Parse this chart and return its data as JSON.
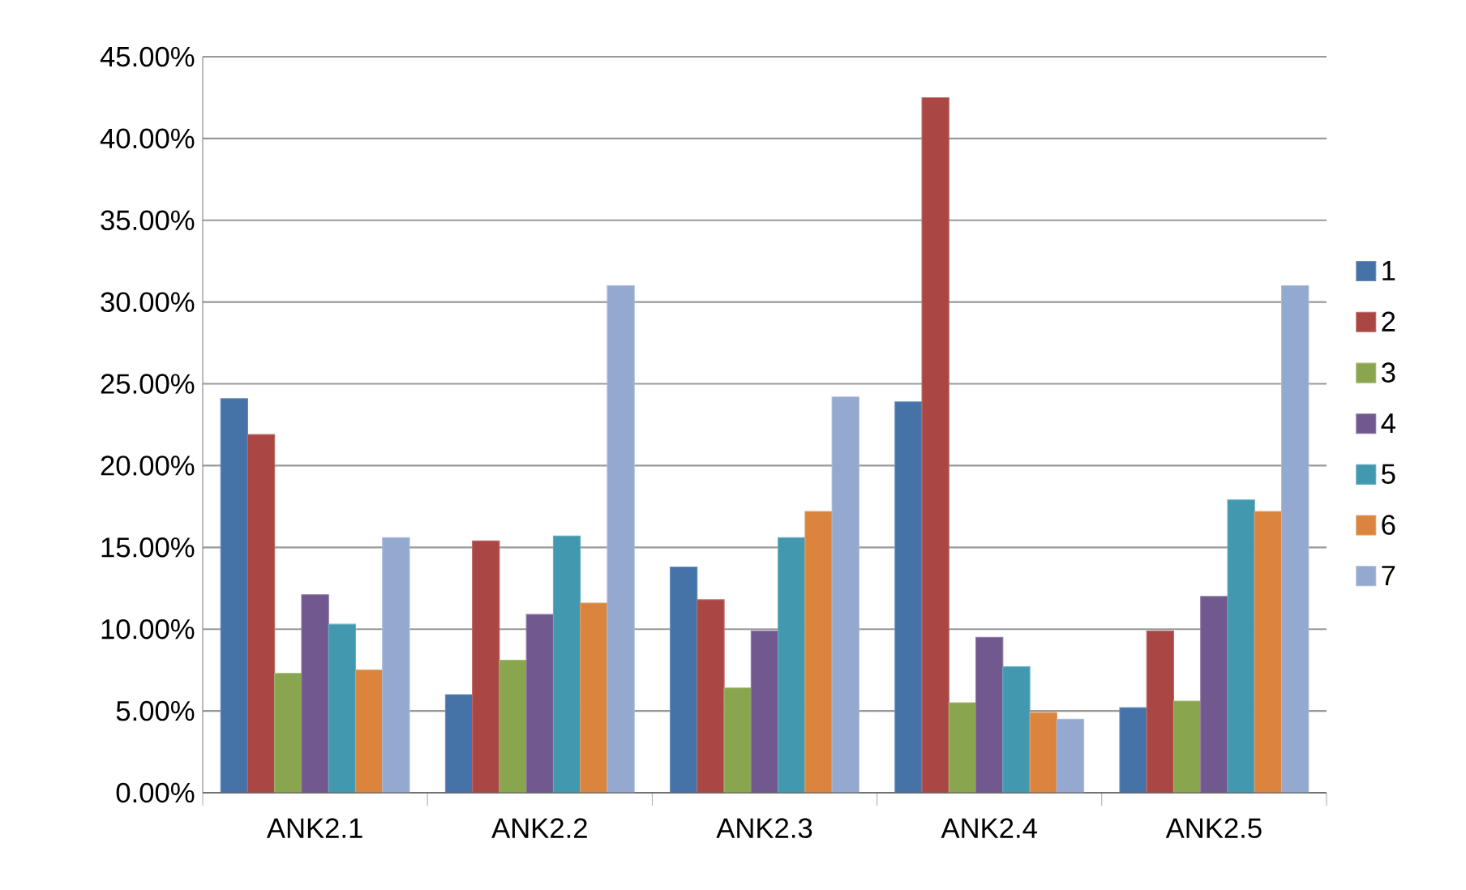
{
  "chart_data": {
    "type": "bar",
    "categories": [
      "ANK2.1",
      "ANK2.2",
      "ANK2.3",
      "ANK2.4",
      "ANK2.5"
    ],
    "series": [
      {
        "name": "1",
        "color": "#4572a7",
        "values": [
          24.1,
          6.0,
          13.8,
          23.9,
          5.2
        ]
      },
      {
        "name": "2",
        "color": "#aa4643",
        "values": [
          21.9,
          15.4,
          11.8,
          42.5,
          9.9
        ]
      },
      {
        "name": "3",
        "color": "#89a54e",
        "values": [
          7.3,
          8.1,
          6.4,
          5.5,
          5.6
        ]
      },
      {
        "name": "4",
        "color": "#71588f",
        "values": [
          12.1,
          10.9,
          9.9,
          9.5,
          12.0
        ]
      },
      {
        "name": "5",
        "color": "#4198af",
        "values": [
          10.3,
          15.7,
          15.6,
          7.7,
          17.9
        ]
      },
      {
        "name": "6",
        "color": "#db843d",
        "values": [
          7.5,
          11.6,
          17.2,
          4.9,
          17.2
        ]
      },
      {
        "name": "7",
        "color": "#93a9cf",
        "values": [
          15.6,
          31.0,
          24.2,
          4.5,
          31.0
        ]
      }
    ],
    "ylim": [
      0,
      45
    ],
    "yticks": [
      {
        "value": 0,
        "label": "0.00%"
      },
      {
        "value": 5,
        "label": "5.00%"
      },
      {
        "value": 10,
        "label": "10.00%"
      },
      {
        "value": 15,
        "label": "15.00%"
      },
      {
        "value": 20,
        "label": "20.00%"
      },
      {
        "value": 25,
        "label": "25.00%"
      },
      {
        "value": 30,
        "label": "30.00%"
      },
      {
        "value": 35,
        "label": "35.00%"
      },
      {
        "value": 40,
        "label": "40.00%"
      },
      {
        "value": 45,
        "label": "45.00%"
      }
    ],
    "grid": "y",
    "legend": "right"
  }
}
